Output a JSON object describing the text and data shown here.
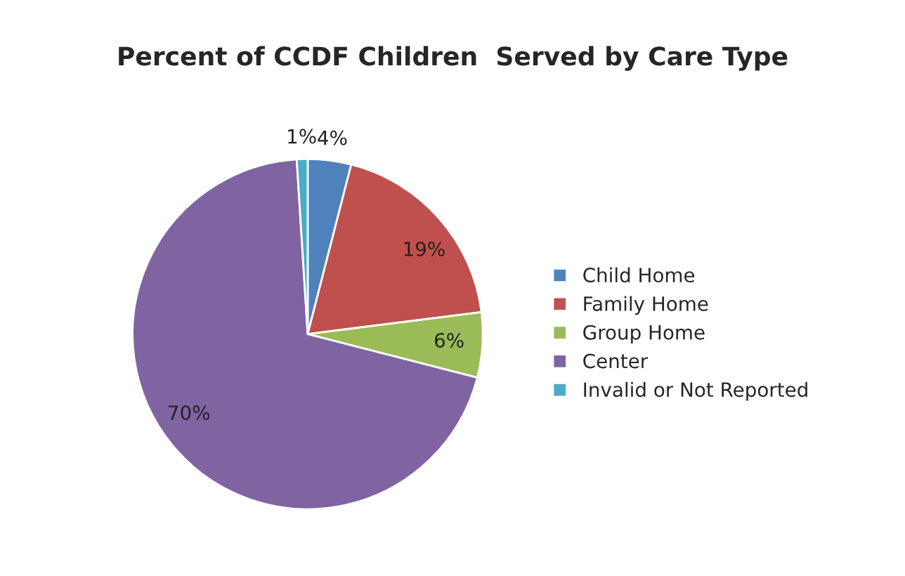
{
  "chart_data": {
    "type": "pie",
    "title": "Percent of CCDF Children  Served by Care Type",
    "categories": [
      "Child Home",
      "Family Home",
      "Group Home",
      "Center",
      "Invalid or Not Reported"
    ],
    "values": [
      4,
      19,
      6,
      70,
      1
    ],
    "value_labels": [
      "4%",
      "19%",
      "6%",
      "70%",
      "1%"
    ],
    "colors": [
      "#4f81bd",
      "#c0504d",
      "#9bbb59",
      "#8064a2",
      "#4bacc6"
    ],
    "legend": "right"
  }
}
